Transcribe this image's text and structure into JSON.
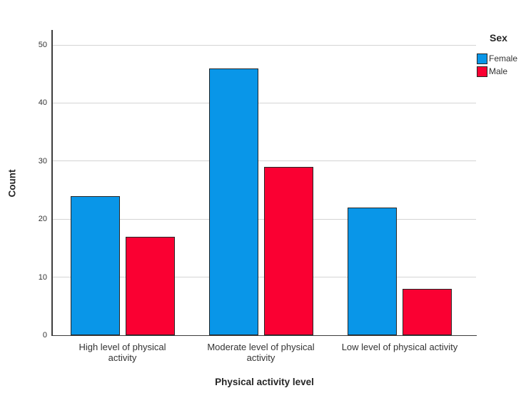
{
  "chart_data": {
    "type": "bar",
    "title": "",
    "categories": [
      "High level of physical activity",
      "Moderate level of physical activity",
      "Low level of physical activity"
    ],
    "series": [
      {
        "name": "Female",
        "color": "#0996e8",
        "values": [
          24,
          46,
          22
        ]
      },
      {
        "name": "Male",
        "color": "#fa0032",
        "values": [
          17,
          29,
          8
        ]
      }
    ],
    "xlabel": "Physical activity level",
    "ylabel": "Count",
    "ylim": [
      0,
      52.5
    ],
    "yticks": [
      0,
      10,
      20,
      30,
      40,
      50
    ],
    "grid": true,
    "legend": {
      "title": "Sex",
      "position": "top-right"
    }
  },
  "colors": {
    "background": "#ffffff",
    "bar_border": "#262626",
    "gridline": "#d4d4d4",
    "axis_line": "#3d3d3d",
    "text": "#333333",
    "female": "#0996e8",
    "male": "#fa0032"
  }
}
